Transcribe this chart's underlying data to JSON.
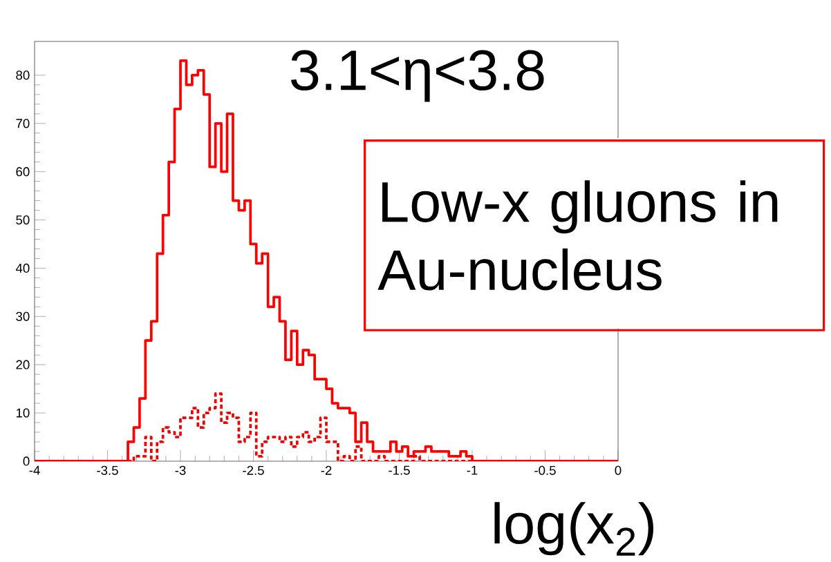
{
  "chart_data": {
    "type": "histogram",
    "xlabel": "log(x$_{2}$)",
    "annotations": [
      "3.1<η<3.8",
      "Low-x gluons in Au-nucleus"
    ],
    "bins": [
      -4,
      -3.96,
      -3.92,
      -3.88,
      -3.84,
      -3.8,
      -3.76,
      -3.72,
      -3.68,
      -3.64,
      -3.6,
      -3.56,
      -3.52,
      -3.48,
      -3.44,
      -3.4,
      -3.36,
      -3.32,
      -3.28,
      -3.24,
      -3.2,
      -3.16,
      -3.12,
      -3.08,
      -3.04,
      -3,
      -2.96,
      -2.92,
      -2.88,
      -2.84,
      -2.8,
      -2.76,
      -2.72,
      -2.68,
      -2.64,
      -2.6,
      -2.56,
      -2.52,
      -2.48,
      -2.44,
      -2.4,
      -2.36,
      -2.32,
      -2.28,
      -2.24,
      -2.2,
      -2.16,
      -2.12,
      -2.08,
      -2.04,
      -2,
      -1.96,
      -1.92,
      -1.88,
      -1.84,
      -1.8,
      -1.76,
      -1.72,
      -1.68,
      -1.64,
      -1.6,
      -1.56,
      -1.52,
      -1.48,
      -1.44,
      -1.4,
      -1.36,
      -1.32,
      -1.28,
      -1.24,
      -1.2,
      -1.16,
      -1.12,
      -1.08,
      -1.04,
      -1,
      -0.96,
      -0.92,
      -0.88,
      -0.84,
      -0.8,
      -0.76,
      -0.72,
      -0.68,
      -0.64,
      -0.6,
      -0.56,
      -0.52,
      -0.48,
      -0.44,
      -0.4,
      -0.36,
      -0.32,
      -0.28,
      -0.24,
      -0.2,
      -0.16,
      -0.12,
      -0.08,
      -0.04,
      0
    ],
    "series": [
      {
        "color": "#ff0000",
        "line_style": "solid",
        "values": [
          0,
          0,
          0,
          0,
          0,
          0,
          0,
          0,
          0,
          0,
          0,
          0,
          0,
          0,
          0,
          0,
          4,
          7,
          13,
          25,
          29,
          43,
          51,
          62,
          73,
          83,
          78,
          80,
          81,
          76,
          61,
          70,
          60,
          72,
          54,
          52,
          54,
          45,
          41,
          43,
          32,
          34,
          29,
          21,
          27,
          20,
          23,
          22,
          17,
          17,
          15,
          12,
          11,
          11,
          10,
          4,
          8,
          4,
          2,
          2,
          2,
          4,
          2,
          3,
          1,
          2,
          2,
          3,
          2,
          2,
          2,
          1,
          1,
          2,
          1,
          0,
          0,
          0,
          0,
          0,
          0,
          0,
          0,
          0,
          0,
          0,
          0,
          0,
          0,
          0,
          0,
          0,
          0,
          0,
          0,
          0,
          0,
          0,
          0,
          0
        ]
      },
      {
        "color": "#f00000",
        "line_style": "dotted",
        "values": [
          0,
          0,
          0,
          0,
          0,
          0,
          0,
          0,
          0,
          0,
          0,
          0,
          0,
          0,
          0,
          0,
          0,
          1,
          1,
          5,
          0,
          4,
          7,
          6,
          5,
          9,
          9,
          11,
          7,
          10,
          11,
          14,
          8,
          10,
          9,
          4,
          5,
          10,
          1,
          4,
          5,
          5,
          4,
          5,
          3,
          5,
          6,
          4,
          5,
          9,
          4,
          4,
          0,
          1,
          0,
          3,
          0,
          0,
          0,
          1,
          0,
          0,
          0,
          0,
          0,
          1,
          0,
          0,
          0,
          0,
          0,
          0,
          0,
          0,
          0,
          0,
          0,
          0,
          0,
          0,
          0,
          0,
          0,
          0,
          0,
          0,
          0,
          0,
          0,
          0,
          0,
          0,
          0,
          0,
          0,
          0,
          0,
          0,
          0,
          0
        ]
      }
    ],
    "xlim": [
      -4,
      0
    ],
    "ylim": [
      0,
      87
    ],
    "xticks": [
      -4,
      -3.5,
      -3,
      -2.5,
      -2,
      -1.5,
      -1,
      -0.5,
      0
    ],
    "yticks": [
      0,
      10,
      20,
      30,
      40,
      50,
      60,
      70,
      80
    ]
  }
}
